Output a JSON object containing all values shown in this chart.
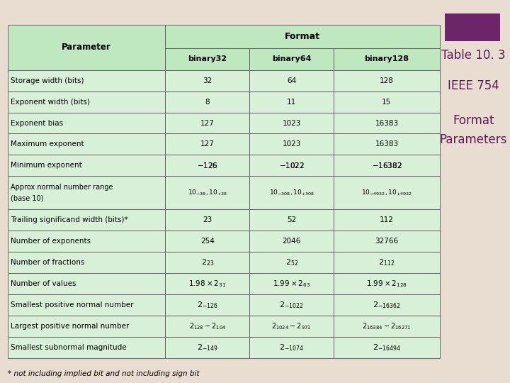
{
  "bg_color": "#e8ddd0",
  "purple_rect_color": "#6b2568",
  "table_bg": "#d8f0d8",
  "header_bg": "#c0e8c0",
  "border_color": "#555555",
  "title_color": "#5a1a5a",
  "footnote": "* not including implied bit and not including sign bit",
  "rows": [
    [
      "Storage width (bits)",
      "32",
      "64",
      "128"
    ],
    [
      "Exponent width (bits)",
      "8",
      "11",
      "15"
    ],
    [
      "Exponent bias",
      "127",
      "1023",
      "16383"
    ],
    [
      "Maximum exponent",
      "127",
      "1023",
      "16383"
    ],
    [
      "Minimum exponent",
      "-126",
      "-1022",
      "-16382"
    ],
    [
      "Approx normal number range\n(base 10)",
      "approx32",
      "approx64",
      "approx128"
    ],
    [
      "Trailing significand width (bits)*",
      "23",
      "52",
      "112"
    ],
    [
      "Number of exponents",
      "254",
      "2046",
      "32766"
    ],
    [
      "Number of fractions",
      "frac23",
      "frac52",
      "frac112"
    ],
    [
      "Number of values",
      "val32",
      "val64",
      "val128"
    ],
    [
      "Smallest positive normal number",
      "spn32",
      "spn64",
      "spn128"
    ],
    [
      "Largest positive normal number",
      "lpn32",
      "lpn64",
      "lpn128"
    ],
    [
      "Smallest subnormal magnitude",
      "ssm32",
      "ssm64",
      "ssm128"
    ]
  ],
  "figsize": [
    7.2,
    5.4
  ],
  "dpi": 100
}
